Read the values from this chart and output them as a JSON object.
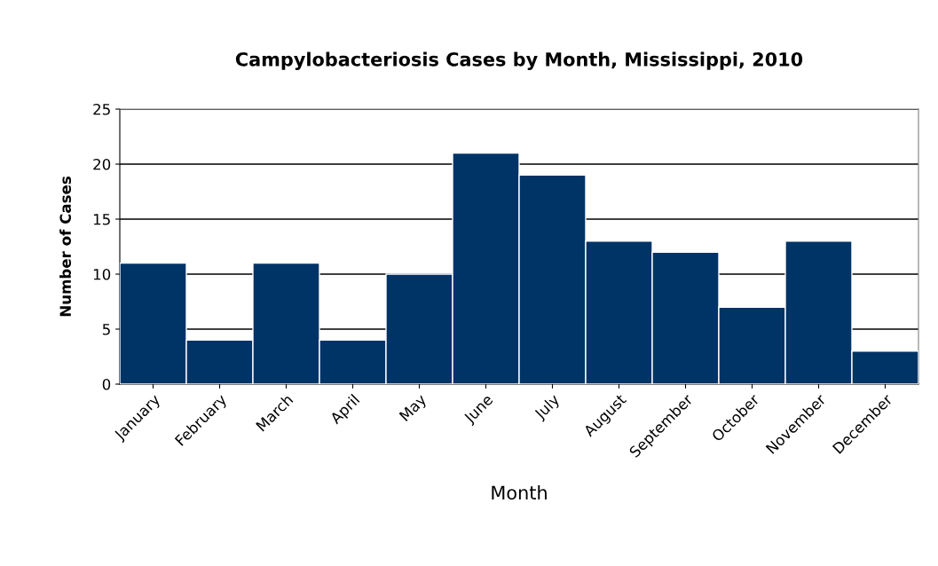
{
  "chart_data": {
    "type": "bar",
    "title": "Campylobacteriosis Cases by Month, Mississippi, 2010",
    "xlabel": "Month",
    "ylabel": "Number of Cases",
    "categories": [
      "January",
      "February",
      "March",
      "April",
      "May",
      "June",
      "July",
      "August",
      "September",
      "October",
      "November",
      "December"
    ],
    "values": [
      11,
      4,
      11,
      4,
      10,
      21,
      19,
      13,
      12,
      7,
      13,
      3
    ],
    "color": "#003366",
    "ylim": [
      0,
      25
    ],
    "yticks": [
      0,
      5,
      10,
      15,
      20,
      25
    ],
    "grid": "y",
    "legend": false
  }
}
